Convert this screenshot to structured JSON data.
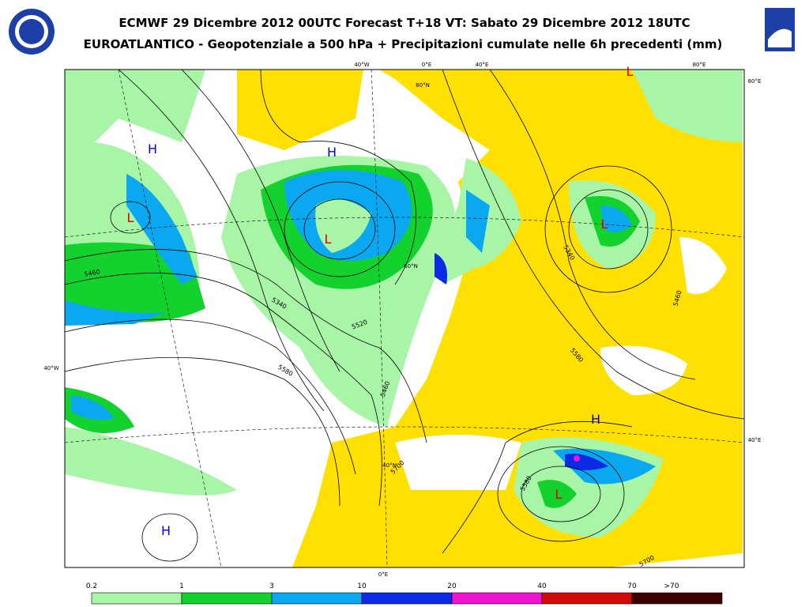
{
  "header": {
    "title_line1": "ECMWF 29 Dicembre 2012 00UTC Forecast T+18 VT: Sabato 29 Dicembre 2012 18UTC",
    "title_line2": "EUROATLANTICO - Geopotenziale a 500 hPa + Precipitazioni cumulate nelle 6h precedenti (mm)"
  },
  "map": {
    "graticule_labels": [
      "40°W",
      "0°E",
      "40°E",
      "80°E",
      "80°N",
      "80°E",
      "40°W",
      "40°E",
      "0°E",
      "60°N",
      "40°N"
    ],
    "contour_labels": [
      "5460",
      "5340",
      "5580",
      "5520",
      "5460",
      "5700",
      "5580",
      "5340",
      "5580",
      "5460",
      "5700"
    ],
    "centers": [
      {
        "label": "H",
        "color": "#0000ee"
      },
      {
        "label": "H",
        "color": "#0000ee"
      },
      {
        "label": "L",
        "color": "#dd0000"
      },
      {
        "label": "L",
        "color": "#dd0000"
      },
      {
        "label": "L",
        "color": "#dd0000"
      },
      {
        "label": "H",
        "color": "#0000ee"
      },
      {
        "label": "L",
        "color": "#dd0000"
      },
      {
        "label": "H",
        "color": "#0000ee"
      },
      {
        "label": "L",
        "color": "#dd0000"
      }
    ]
  },
  "legend": {
    "labels": [
      "0.2",
      "1",
      "3",
      "10",
      "20",
      "40",
      "70",
      ">70"
    ],
    "colors": [
      "#a8f5a8",
      "#14d22e",
      "#0aa8f0",
      "#0a2ae6",
      "#f014d2",
      "#d20a0a",
      "#3c0000"
    ]
  }
}
